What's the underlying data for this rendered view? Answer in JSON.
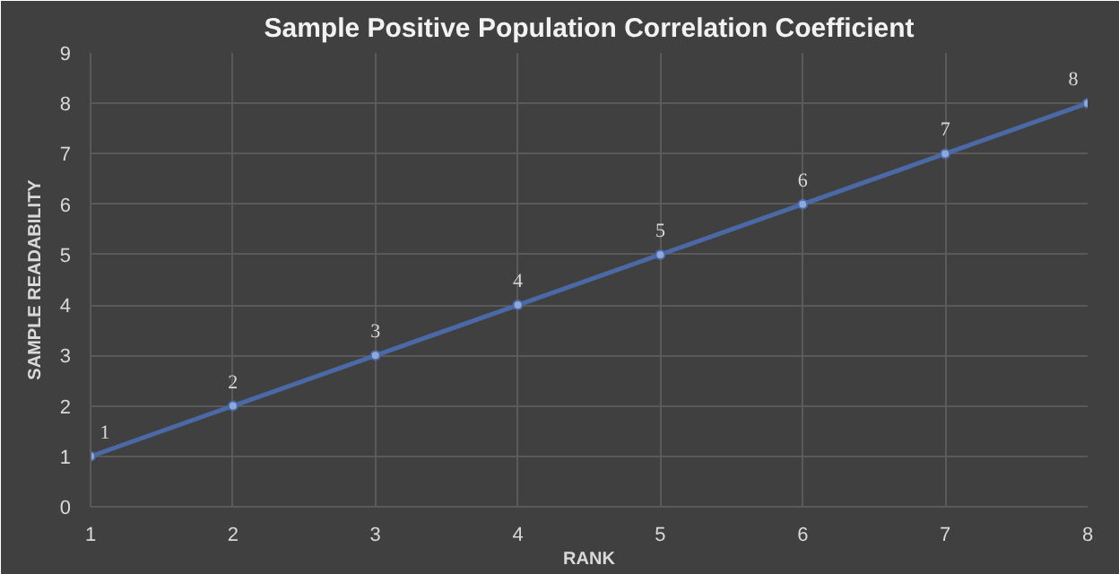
{
  "chart_data": {
    "type": "line",
    "title": "Sample Positive Population Correlation Coefficient",
    "xlabel": "RANK",
    "ylabel": "SAMPLE READABILITY",
    "x": [
      1,
      2,
      3,
      4,
      5,
      6,
      7,
      8
    ],
    "series": [
      {
        "color": "#4a69a6",
        "values": [
          1,
          2,
          3,
          4,
          5,
          6,
          7,
          8
        ]
      }
    ],
    "xlim": [
      1,
      8
    ],
    "ylim": [
      0,
      9
    ],
    "xticks": [
      1,
      2,
      3,
      4,
      5,
      6,
      7,
      8
    ],
    "yticks": [
      0,
      1,
      2,
      3,
      4,
      5,
      6,
      7,
      8,
      9
    ],
    "grid": true,
    "marker": "circle",
    "line_style": "solid",
    "data_labels": true
  }
}
